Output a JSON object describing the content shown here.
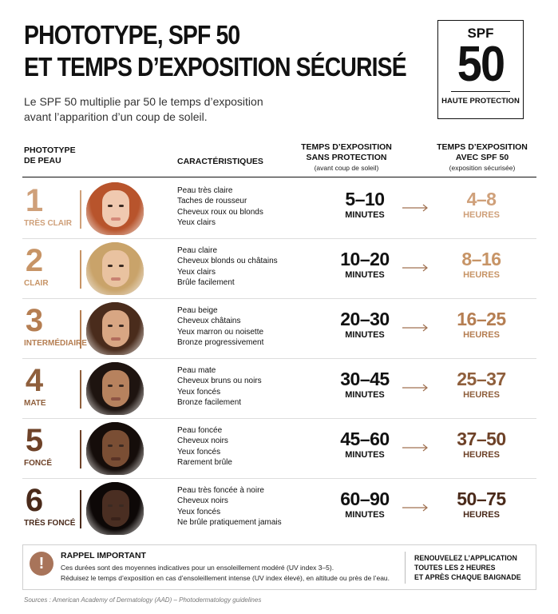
{
  "header": {
    "title_line1": "PHOTOTYPE, SPF 50",
    "title_line2": "ET TEMPS D’EXPOSITION SÉCURISÉ",
    "subtitle": "Le SPF 50 multiplie par 50 le temps d’exposition avant l’apparition d’un coup de soleil."
  },
  "badge": {
    "top": "SPF",
    "big": "50",
    "bottom": "HAUTE PROTECTION"
  },
  "columns": {
    "phototype_l1": "PHOTOTYPE",
    "phototype_l2": "DE PEAU",
    "characteristics": "CARACTÉRISTIQUES",
    "no_prot_l1": "TEMPS D’EXPOSITION",
    "no_prot_l2": "SANS PROTECTION",
    "no_prot_sub": "(avant coup de soleil)",
    "spf_l1": "TEMPS D’EXPOSITION",
    "spf_l2": "AVEC SPF 50",
    "spf_sub": "(exposition sécurisée)"
  },
  "rows": [
    {
      "number": "1",
      "name": "TRÈS CLAIR",
      "traits": [
        "Peau très claire",
        "Taches de rousseur",
        "Cheveux roux ou blonds",
        "Yeux clairs"
      ],
      "no_prot_value": "5–10",
      "no_prot_unit": "MINUTES",
      "spf_value": "4–8",
      "spf_unit": "HEURES",
      "accent": "#cfa07a",
      "skin": "#f0c9b0",
      "hair": "#b8542c",
      "lip": "#d58a7a"
    },
    {
      "number": "2",
      "name": "CLAIR",
      "traits": [
        "Peau claire",
        "Cheveux blonds ou châtains",
        "Yeux clairs",
        "Brûle facilement"
      ],
      "no_prot_value": "10–20",
      "no_prot_unit": "MINUTES",
      "spf_value": "8–16",
      "spf_unit": "HEURES",
      "accent": "#c79466",
      "skin": "#e9c2a0",
      "hair": "#c9a36a",
      "lip": "#c98272"
    },
    {
      "number": "3",
      "name": "INTERMÉDIAIRE",
      "traits": [
        "Peau beige",
        "Cheveux châtains",
        "Yeux marron ou noisette",
        "Bronze progressivement"
      ],
      "no_prot_value": "20–30",
      "no_prot_unit": "MINUTES",
      "spf_value": "16–25",
      "spf_unit": "HEURES",
      "accent": "#b57e52",
      "skin": "#d8a683",
      "hair": "#4a2c1c",
      "lip": "#b26c5c"
    },
    {
      "number": "4",
      "name": "MATE",
      "traits": [
        "Peau mate",
        "Cheveux bruns ou noirs",
        "Yeux foncés",
        "Bronze facilement"
      ],
      "no_prot_value": "30–45",
      "no_prot_unit": "MINUTES",
      "spf_value": "25–37",
      "spf_unit": "HEURES",
      "accent": "#8f5f3c",
      "skin": "#b7825e",
      "hair": "#1e1410",
      "lip": "#8e5444"
    },
    {
      "number": "5",
      "name": "FONCÉ",
      "traits": [
        "Peau foncée",
        "Cheveux noirs",
        "Yeux foncés",
        "Rarement brûle"
      ],
      "no_prot_value": "45–60",
      "no_prot_unit": "MINUTES",
      "spf_value": "37–50",
      "spf_unit": "HEURES",
      "accent": "#6e4228",
      "skin": "#7a4e34",
      "hair": "#150d0a",
      "lip": "#5a3326"
    },
    {
      "number": "6",
      "name": "TRÈS FONCÉ",
      "traits": [
        "Peau très foncée à noire",
        "Cheveux noirs",
        "Yeux foncés",
        "Ne brûle pratiquement jamais"
      ],
      "no_prot_value": "60–90",
      "no_prot_unit": "MINUTES",
      "spf_value": "50–75",
      "spf_unit": "HEURES",
      "accent": "#4a2a1a",
      "skin": "#4a2e22",
      "hair": "#0d0807",
      "lip": "#3a221a"
    }
  ],
  "reminder": {
    "icon": "exclamation-icon",
    "title": "RAPPEL IMPORTANT",
    "text_l1": "Ces durées sont des moyennes indicatives pour un ensoleillement modéré (UV index 3–5).",
    "text_l2": "Réduisez le temps d’exposition en cas d’ensoleillement intense (UV index élevé), en altitude ou près de l’eau.",
    "right_l1": "RENOUVELEZ L’APPLICATION",
    "right_l2": "TOUTES LES 2 HEURES",
    "right_l3": "ET APRÈS CHAQUE BAIGNADE"
  },
  "sources": "Sources : American Academy of Dermatology (AAD) – Photodermatology guidelines",
  "colors": {
    "arrow": "#a07050",
    "text": "#111111"
  }
}
